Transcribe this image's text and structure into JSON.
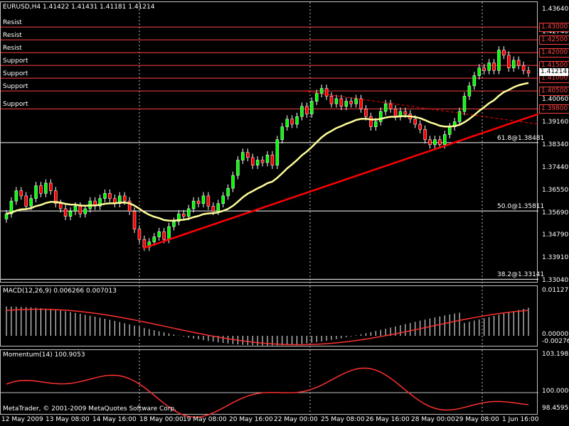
{
  "header": {
    "symbol_label": "EURUSD,H4",
    "ohlc": "1.41422 1.41431 1.41181 1.41214"
  },
  "levels": [
    {
      "label": "Resist",
      "price": 1.43,
      "tag": "1.43000"
    },
    {
      "label": "Resist",
      "price": 1.425,
      "tag": "1.42500"
    },
    {
      "label": "Resist",
      "price": 1.42,
      "tag": "1.42000"
    },
    {
      "label": "Support",
      "price": 1.415,
      "tag": "1.41500"
    },
    {
      "label": "Support",
      "price": 1.41,
      "tag": "1.41000"
    },
    {
      "label": "Support",
      "price": 1.405,
      "tag": "1.40500"
    },
    {
      "label": "Support",
      "price": 1.398,
      "tag": "1.39800"
    }
  ],
  "fibo": [
    {
      "label": "61.8@1.38481",
      "price": 1.38481
    },
    {
      "label": "50.0@1.35811",
      "price": 1.35811
    },
    {
      "label": "38.2@1.33141",
      "price": 1.33141
    }
  ],
  "price_axis": [
    "1.43640",
    "1.42740",
    "1.41850",
    "1.40950",
    "1.40060",
    "1.39160",
    "1.38340",
    "1.37440",
    "1.36550",
    "1.35690",
    "1.34790",
    "1.33910",
    "1.33040"
  ],
  "current_price_tag": "1.41214",
  "macd": {
    "label": "MACD(12,26,9) 0.006266 0.007013",
    "axis": [
      "0.011275",
      "0.00000",
      "-0.00276"
    ]
  },
  "momentum": {
    "label": "Momentum(14) 100.9053",
    "axis": [
      "103.1982",
      "100.0000",
      "98.4595"
    ]
  },
  "copyright": "MetaTrader, © 2001-2009 MetaQuotes Software Corp.",
  "dates": [
    "12 May 2009",
    "13 May 08:00",
    "14 May 16:00",
    "18 May 00:00",
    "19 May 08:00",
    "20 May 16:00",
    "22 May 00:00",
    "25 May 08:00",
    "26 May 16:00",
    "28 May 00:00",
    "29 May 08:00",
    "1 Jun 16:00"
  ],
  "colors": {
    "bull": "#00ff00",
    "bear": "#ff0000",
    "ma": "#ffff99",
    "trend": "#ff0000",
    "level": "#ff4040",
    "grid": "#c0c0c0",
    "macd_line": "#ff3030",
    "hist": "#ffffff"
  }
}
